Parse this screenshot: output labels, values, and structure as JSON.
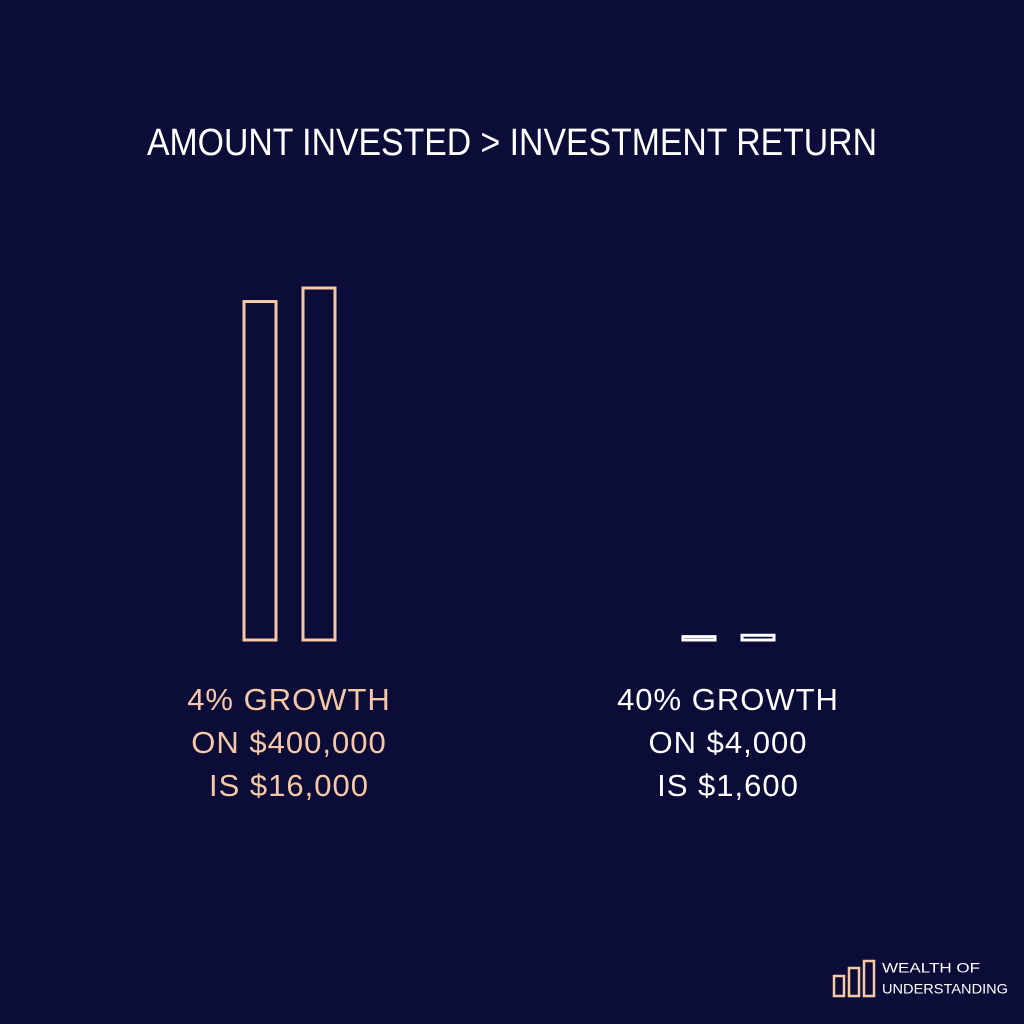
{
  "chart_data": {
    "type": "bar",
    "title": "AMOUNT INVESTED > INVESTMENT RETURN",
    "categories": [
      [
        "4% GROWTH",
        "ON $400,000",
        "IS $16,000"
      ],
      [
        "40% GROWTH",
        "ON $4,000",
        "IS $1,600"
      ]
    ],
    "colors": [
      "#f6c8a4",
      "#ffffff"
    ],
    "series": [
      {
        "values": [
          400000,
          4000
        ]
      },
      {
        "values": [
          416000,
          5600
        ]
      }
    ],
    "ylim": [
      0,
      416000
    ]
  },
  "footer": {
    "lines": [
      "WEALTH OF",
      "UNDERSTANDING"
    ]
  }
}
